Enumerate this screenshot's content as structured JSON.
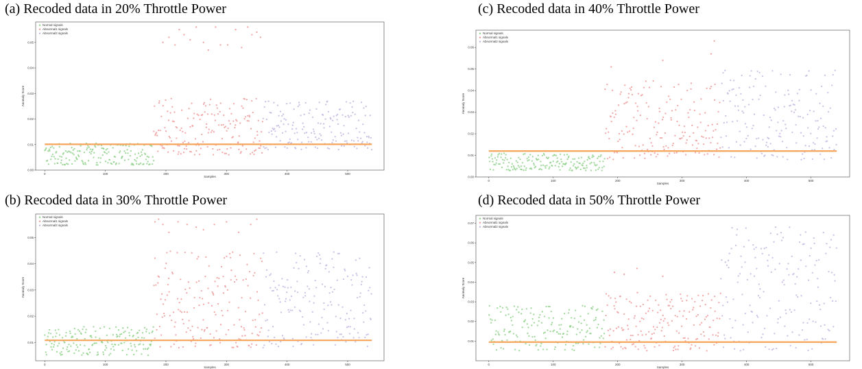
{
  "captions": {
    "a": "(a) Recoded data in 20% Throttle Power",
    "b": "(b) Recoded data in 30% Throttle Power",
    "c": "(c) Recoded data in 40% Throttle Power",
    "d": "(d) Recoded data in 50% Throttle Power"
  },
  "colors": {
    "normal": "#8fd18a",
    "abnormal1": "#ef9a9a",
    "abnormal2": "#c3b6e0",
    "threshold": "#f5a45a"
  },
  "chart_data": [
    {
      "id": "a",
      "type": "scatter",
      "xlabel": "Samples",
      "ylabel": "Anomaly Score",
      "xlim": [
        -15,
        560
      ],
      "ylim": [
        0,
        0.058
      ],
      "xticks": [
        0,
        100,
        200,
        300,
        400,
        500
      ],
      "yticks": [
        0.0,
        0.01,
        0.02,
        0.03,
        0.04,
        0.05
      ],
      "ytick_labels": [
        "0.00",
        "0.01",
        "0.02",
        "0.03",
        "0.04",
        "0.05"
      ],
      "legend": [
        "Normal signals",
        "Abnormal1 signals",
        "Abnormal2 signals"
      ],
      "legend_position": "top-left",
      "threshold": 0.0101,
      "series": [
        {
          "name": "Normal signals",
          "x_range": [
            0,
            180
          ],
          "low": 0.002,
          "high": 0.0105
        },
        {
          "name": "Abnormal1 signals",
          "x_range": [
            180,
            360
          ],
          "low": 0.006,
          "high": 0.028,
          "outliers": [
            [
              195,
              0.05
            ],
            [
              205,
              0.052
            ],
            [
              215,
              0.049
            ],
            [
              222,
              0.055
            ],
            [
              230,
              0.053
            ],
            [
              240,
              0.051
            ],
            [
              250,
              0.056
            ],
            [
              262,
              0.05
            ],
            [
              270,
              0.047
            ],
            [
              282,
              0.056
            ],
            [
              290,
              0.049
            ],
            [
              302,
              0.049
            ],
            [
              315,
              0.055
            ],
            [
              325,
              0.048
            ],
            [
              335,
              0.056
            ],
            [
              342,
              0.053
            ],
            [
              350,
              0.054
            ],
            [
              356,
              0.052
            ]
          ]
        },
        {
          "name": "Abnormal2 signals",
          "x_range": [
            360,
            540
          ],
          "low": 0.008,
          "high": 0.027
        }
      ]
    },
    {
      "id": "b",
      "type": "scatter",
      "xlabel": "Samples",
      "ylabel": "Anomaly Score",
      "xlim": [
        -15,
        560
      ],
      "ylim": [
        0.003,
        0.059
      ],
      "xticks": [
        0,
        100,
        200,
        300,
        400,
        500
      ],
      "yticks": [
        0.01,
        0.02,
        0.03,
        0.04,
        0.05
      ],
      "ytick_labels": [
        "0.01",
        "0.02",
        "0.03",
        "0.04",
        "0.05"
      ],
      "legend": [
        "Normal signals",
        "Abnormal1 signals",
        "Abnormal2 signals"
      ],
      "legend_position": "top-left",
      "threshold": 0.0108,
      "series": [
        {
          "name": "Normal signals",
          "x_range": [
            0,
            180
          ],
          "low": 0.005,
          "high": 0.016
        },
        {
          "name": "Abnormal1 signals",
          "x_range": [
            180,
            360
          ],
          "low": 0.008,
          "high": 0.045,
          "outliers": [
            [
              182,
              0.056
            ],
            [
              188,
              0.057
            ],
            [
              195,
              0.055
            ],
            [
              205,
              0.052
            ],
            [
              220,
              0.056
            ],
            [
              235,
              0.055
            ],
            [
              250,
              0.054
            ],
            [
              262,
              0.053
            ],
            [
              280,
              0.055
            ],
            [
              300,
              0.056
            ],
            [
              320,
              0.052
            ],
            [
              340,
              0.055
            ],
            [
              350,
              0.057
            ]
          ]
        },
        {
          "name": "Abnormal2 signals",
          "x_range": [
            360,
            540
          ],
          "low": 0.008,
          "high": 0.045
        }
      ]
    },
    {
      "id": "c",
      "type": "scatter",
      "xlabel": "Samples",
      "ylabel": "Anomaly Score",
      "xlim": [
        -20,
        560
      ],
      "ylim": [
        0,
        0.068
      ],
      "xticks": [
        0,
        100,
        200,
        300,
        400,
        500
      ],
      "yticks": [
        0.0,
        0.01,
        0.02,
        0.03,
        0.04,
        0.05,
        0.06
      ],
      "ytick_labels": [
        "0.00",
        "0.01",
        "0.02",
        "0.03",
        "0.04",
        "0.05",
        "0.06"
      ],
      "legend": [
        "Normal signals",
        "Abnormal1 signals",
        "Abnormal2 signals"
      ],
      "legend_position": "top-left",
      "threshold": 0.012,
      "series": [
        {
          "name": "Normal signals",
          "x_range": [
            0,
            180
          ],
          "low": 0.003,
          "high": 0.011
        },
        {
          "name": "Abnormal1 signals",
          "x_range": [
            180,
            360
          ],
          "low": 0.008,
          "high": 0.045,
          "outliers": [
            [
              190,
              0.051
            ],
            [
              270,
              0.054
            ],
            [
              350,
              0.063
            ],
            [
              345,
              0.057
            ]
          ]
        },
        {
          "name": "Abnormal2 signals",
          "x_range": [
            360,
            540
          ],
          "low": 0.008,
          "high": 0.05
        }
      ]
    },
    {
      "id": "d",
      "type": "scatter",
      "xlabel": "Samples",
      "ylabel": "Anomaly Score",
      "xlim": [
        -20,
        560
      ],
      "ylim": [
        0,
        0.074
      ],
      "xticks": [
        0,
        100,
        200,
        300,
        400,
        500
      ],
      "yticks": [
        0.01,
        0.02,
        0.03,
        0.04,
        0.05,
        0.06,
        0.07
      ],
      "ytick_labels": [
        "0.01",
        "0.02",
        "0.03",
        "0.04",
        "0.05",
        "0.06",
        "0.07"
      ],
      "legend": [
        "Normal signals",
        "Abnormal1 signals",
        "Abnormal2 signals"
      ],
      "legend_position": "top-left",
      "threshold": 0.0095,
      "series": [
        {
          "name": "Normal signals",
          "x_range": [
            0,
            180
          ],
          "low": 0.005,
          "high": 0.028
        },
        {
          "name": "Abnormal1 signals",
          "x_range": [
            180,
            360
          ],
          "low": 0.005,
          "high": 0.035,
          "outliers": [
            [
              195,
              0.045
            ],
            [
              210,
              0.044
            ],
            [
              230,
              0.047
            ],
            [
              270,
              0.043
            ]
          ]
        },
        {
          "name": "Abnormal2 signals",
          "x_range": [
            360,
            540
          ],
          "low": 0.005,
          "high": 0.07
        }
      ]
    }
  ]
}
